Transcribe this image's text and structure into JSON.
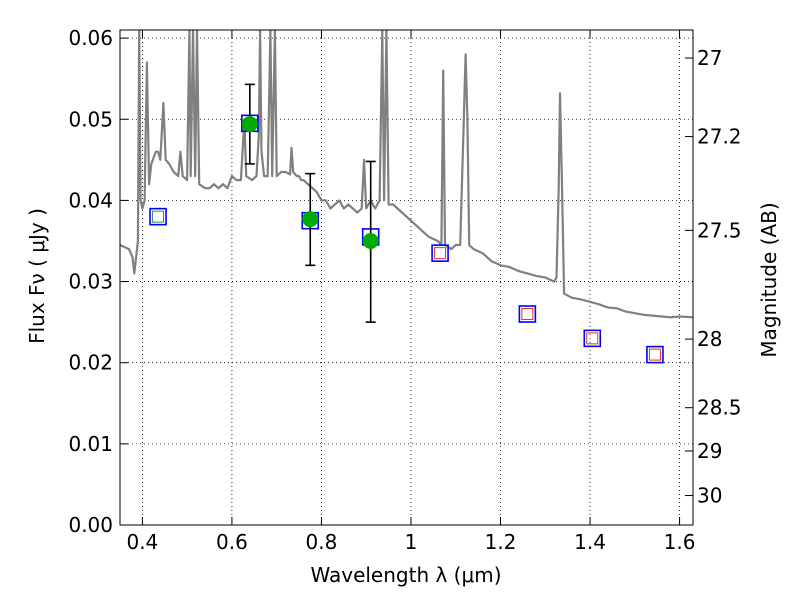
{
  "chart_data": {
    "type": "scatter",
    "xlabel": "Wavelength  λ (μm)",
    "ylabel_left": "Flux  Fν  ( μJy )",
    "ylabel_right": "Magnitude (AB)",
    "xlim": [
      0.35,
      1.63
    ],
    "ylim": [
      0.0,
      0.061
    ],
    "grid": true,
    "x_ticks": [
      {
        "value": 0.4,
        "label": "0.4"
      },
      {
        "value": 0.6,
        "label": "0.6"
      },
      {
        "value": 0.8,
        "label": "0.8"
      },
      {
        "value": 1.0,
        "label": "1"
      },
      {
        "value": 1.2,
        "label": "1.2"
      },
      {
        "value": 1.4,
        "label": "1.4"
      },
      {
        "value": 1.6,
        "label": "1.6"
      }
    ],
    "y_ticks": [
      {
        "value": 0.0,
        "label": "0.00"
      },
      {
        "value": 0.01,
        "label": "0.01"
      },
      {
        "value": 0.02,
        "label": "0.02"
      },
      {
        "value": 0.03,
        "label": "0.03"
      },
      {
        "value": 0.04,
        "label": "0.04"
      },
      {
        "value": 0.05,
        "label": "0.05"
      },
      {
        "value": 0.06,
        "label": "0.06"
      }
    ],
    "mag_ticks": [
      {
        "mag": 27,
        "label": "27"
      },
      {
        "mag": 27.2,
        "label": "27.2"
      },
      {
        "mag": 27.5,
        "label": "27.5"
      },
      {
        "mag": 28,
        "label": "28"
      },
      {
        "mag": 28.5,
        "label": "28.5"
      },
      {
        "mag": 29,
        "label": "29"
      },
      {
        "mag": 30,
        "label": "30"
      }
    ],
    "series": [
      {
        "kind": "line",
        "color": "#808080",
        "points": [
          [
            0.35,
            0.0345
          ],
          [
            0.37,
            0.034
          ],
          [
            0.378,
            0.033
          ],
          [
            0.382,
            0.031
          ],
          [
            0.386,
            0.033
          ],
          [
            0.39,
            0.035
          ],
          [
            0.393,
            0.061
          ],
          [
            0.396,
            0.04
          ],
          [
            0.4,
            0.039
          ],
          [
            0.405,
            0.04
          ],
          [
            0.41,
            0.057
          ],
          [
            0.415,
            0.042
          ],
          [
            0.42,
            0.0445
          ],
          [
            0.43,
            0.046
          ],
          [
            0.435,
            0.046
          ],
          [
            0.44,
            0.045
          ],
          [
            0.447,
            0.052
          ],
          [
            0.452,
            0.045
          ],
          [
            0.46,
            0.0445
          ],
          [
            0.47,
            0.0435
          ],
          [
            0.48,
            0.043
          ],
          [
            0.485,
            0.046
          ],
          [
            0.49,
            0.043
          ],
          [
            0.5,
            0.0425
          ],
          [
            0.505,
            0.061
          ],
          [
            0.508,
            0.043
          ],
          [
            0.513,
            0.061
          ],
          [
            0.518,
            0.043
          ],
          [
            0.522,
            0.061
          ],
          [
            0.527,
            0.042
          ],
          [
            0.54,
            0.0415
          ],
          [
            0.55,
            0.0415
          ],
          [
            0.56,
            0.042
          ],
          [
            0.57,
            0.0415
          ],
          [
            0.58,
            0.042
          ],
          [
            0.59,
            0.0415
          ],
          [
            0.6,
            0.043
          ],
          [
            0.61,
            0.0425
          ],
          [
            0.62,
            0.0425
          ],
          [
            0.628,
            0.05
          ],
          [
            0.632,
            0.043
          ],
          [
            0.645,
            0.0425
          ],
          [
            0.655,
            0.043
          ],
          [
            0.66,
            0.048
          ],
          [
            0.663,
            0.061
          ],
          [
            0.666,
            0.046
          ],
          [
            0.672,
            0.043
          ],
          [
            0.68,
            0.043
          ],
          [
            0.686,
            0.061
          ],
          [
            0.69,
            0.043
          ],
          [
            0.696,
            0.061
          ],
          [
            0.7,
            0.043
          ],
          [
            0.71,
            0.0435
          ],
          [
            0.72,
            0.0435
          ],
          [
            0.73,
            0.0432
          ],
          [
            0.733,
            0.0465
          ],
          [
            0.737,
            0.0435
          ],
          [
            0.745,
            0.043
          ],
          [
            0.75,
            0.043
          ],
          [
            0.755,
            0.0425
          ],
          [
            0.76,
            0.0425
          ],
          [
            0.77,
            0.042
          ],
          [
            0.78,
            0.0415
          ],
          [
            0.79,
            0.041
          ],
          [
            0.8,
            0.04
          ],
          [
            0.81,
            0.04
          ],
          [
            0.82,
            0.039
          ],
          [
            0.83,
            0.0395
          ],
          [
            0.84,
            0.04
          ],
          [
            0.85,
            0.039
          ],
          [
            0.86,
            0.0395
          ],
          [
            0.87,
            0.039
          ],
          [
            0.88,
            0.0385
          ],
          [
            0.89,
            0.039
          ],
          [
            0.895,
            0.045
          ],
          [
            0.9,
            0.039
          ],
          [
            0.905,
            0.0395
          ],
          [
            0.91,
            0.04
          ],
          [
            0.915,
            0.0395
          ],
          [
            0.92,
            0.039
          ],
          [
            0.925,
            0.0395
          ],
          [
            0.93,
            0.04
          ],
          [
            0.936,
            0.061
          ],
          [
            0.94,
            0.04
          ],
          [
            0.945,
            0.061
          ],
          [
            0.95,
            0.0395
          ],
          [
            0.96,
            0.0395
          ],
          [
            0.97,
            0.039
          ],
          [
            0.98,
            0.0385
          ],
          [
            0.99,
            0.038
          ],
          [
            1.0,
            0.0375
          ],
          [
            1.01,
            0.037
          ],
          [
            1.02,
            0.0365
          ],
          [
            1.03,
            0.036
          ],
          [
            1.04,
            0.0355
          ],
          [
            1.06,
            0.035
          ],
          [
            1.068,
            0.0345
          ],
          [
            1.072,
            0.056
          ],
          [
            1.076,
            0.0345
          ],
          [
            1.09,
            0.034
          ],
          [
            1.1,
            0.0345
          ],
          [
            1.11,
            0.0345
          ],
          [
            1.118,
            0.05
          ],
          [
            1.122,
            0.058
          ],
          [
            1.126,
            0.05
          ],
          [
            1.13,
            0.0345
          ],
          [
            1.14,
            0.034
          ],
          [
            1.16,
            0.0335
          ],
          [
            1.18,
            0.0325
          ],
          [
            1.2,
            0.032
          ],
          [
            1.22,
            0.0318
          ],
          [
            1.24,
            0.0313
          ],
          [
            1.26,
            0.031
          ],
          [
            1.28,
            0.0307
          ],
          [
            1.3,
            0.0305
          ],
          [
            1.32,
            0.03
          ],
          [
            1.325,
            0.0305
          ],
          [
            1.33,
            0.0415
          ],
          [
            1.333,
            0.0532
          ],
          [
            1.337,
            0.043
          ],
          [
            1.342,
            0.0285
          ],
          [
            1.36,
            0.028
          ],
          [
            1.38,
            0.0278
          ],
          [
            1.4,
            0.0275
          ],
          [
            1.42,
            0.0272
          ],
          [
            1.44,
            0.0268
          ],
          [
            1.46,
            0.0267
          ],
          [
            1.48,
            0.0263
          ],
          [
            1.5,
            0.0261
          ],
          [
            1.52,
            0.0259
          ],
          [
            1.54,
            0.0258
          ],
          [
            1.56,
            0.0257
          ],
          [
            1.58,
            0.0256
          ],
          [
            1.6,
            0.0257
          ],
          [
            1.63,
            0.0256
          ]
        ]
      },
      {
        "kind": "model_photometry",
        "marker": "blue-square",
        "color": "#0000ff",
        "x": [
          0.435,
          0.64,
          0.775,
          0.91,
          1.065,
          1.26,
          1.405,
          1.545
        ],
        "y": [
          0.038,
          0.0495,
          0.0375,
          0.0355,
          0.0335,
          0.026,
          0.023,
          0.021
        ]
      },
      {
        "kind": "inner_squares",
        "points": [
          {
            "x": 0.435,
            "y": 0.038,
            "color": "#2e8b57"
          },
          {
            "x": 1.065,
            "y": 0.0335,
            "color": "#e03030"
          },
          {
            "x": 1.26,
            "y": 0.026,
            "color": "#e03030"
          },
          {
            "x": 1.405,
            "y": 0.023,
            "color": "#e03030"
          },
          {
            "x": 1.545,
            "y": 0.021,
            "color": "#e03030"
          }
        ]
      },
      {
        "kind": "observed",
        "marker": "green-circle",
        "color": "#00aa00",
        "x": [
          0.64,
          0.775,
          0.91
        ],
        "y": [
          0.0494,
          0.0377,
          0.035
        ],
        "yerr_low": [
          0.0445,
          0.032,
          0.025
        ],
        "yerr_high": [
          0.0543,
          0.0433,
          0.0448
        ]
      }
    ]
  }
}
